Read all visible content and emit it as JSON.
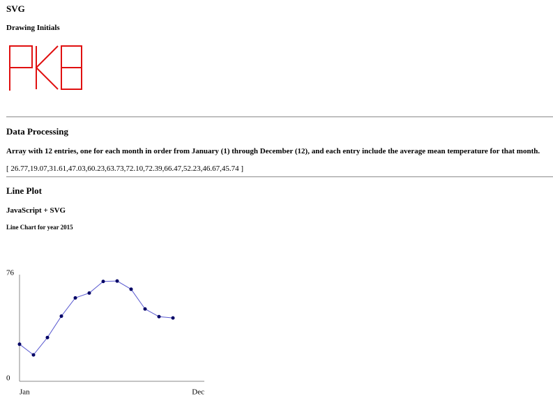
{
  "page": {
    "heading": "SVG",
    "subheading": "Drawing Initials"
  },
  "data_processing": {
    "heading": "Data Processing",
    "description": "Array with 12 entries, one for each month in order from January (1) through December (12), and each entry include the average mean temperature for that month.",
    "array_text": "[ 26.77,19.07,31.61,47.03,60.23,63.73,72.10,72.39,66.47,52.23,46.67,45.74 ]"
  },
  "line_plot": {
    "heading": "Line Plot",
    "subheading": "JavaScript + SVG"
  },
  "chart_data": {
    "type": "line",
    "title": "Line Chart for year 2015",
    "categories": [
      "Jan",
      null,
      null,
      null,
      null,
      null,
      null,
      null,
      null,
      null,
      null,
      "Dec"
    ],
    "values": [
      26.77,
      19.07,
      31.61,
      47.03,
      60.23,
      63.73,
      72.1,
      72.39,
      66.47,
      52.23,
      46.67,
      45.74
    ],
    "color": "#5a5ad0",
    "marker_color": "#000066",
    "ylim": [
      0,
      76
    ],
    "yticks": [
      0,
      76
    ],
    "grid": false
  }
}
